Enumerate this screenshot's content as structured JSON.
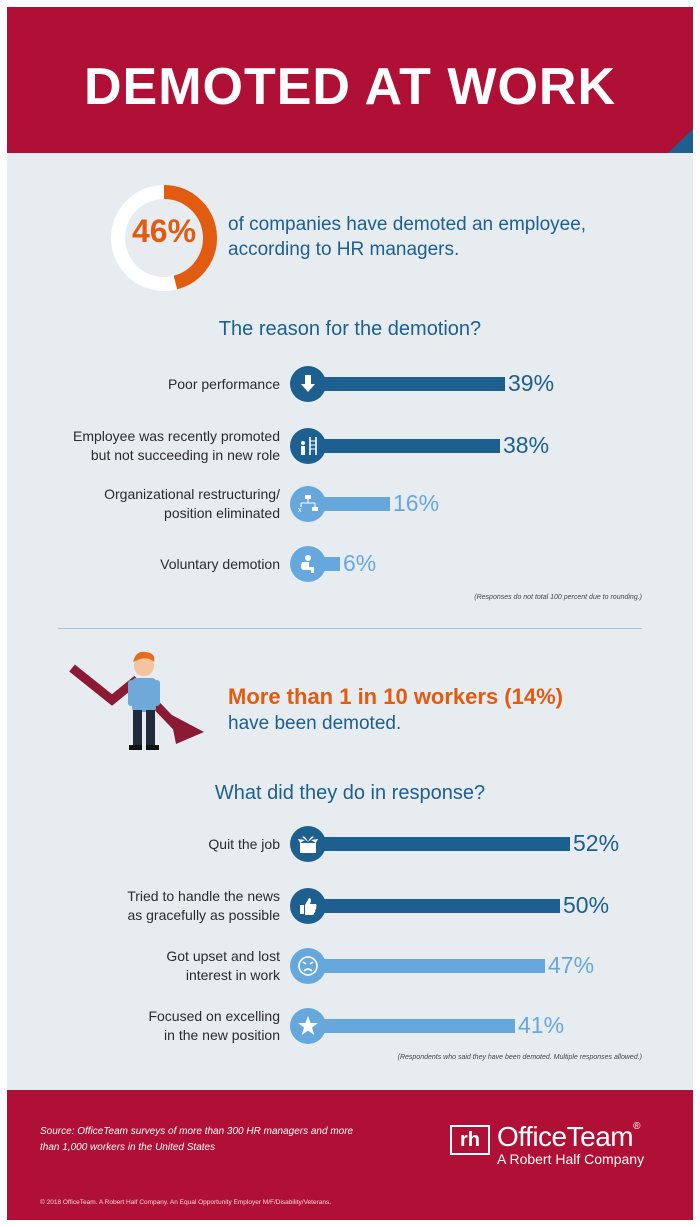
{
  "title": "DEMOTED AT WORK",
  "stat": {
    "percent_label": "46%",
    "value": 46,
    "text": "of companies have demoted an employee, according to HR managers."
  },
  "reasons": {
    "title": "The reason for the demotion?",
    "note": "(Responses do not total 100 percent due to rounding.)"
  },
  "workers": {
    "headline": "More than 1 in 10 workers (14%)",
    "subline": "have been demoted."
  },
  "responses": {
    "title": "What did they do in response?",
    "note": "(Respondents who said they have been demoted. Multiple responses allowed.)"
  },
  "footer": {
    "source": "Source: OfficeTeam surveys of more than 300 HR managers and more than 1,000 workers in the United States",
    "copyright": "© 2018 OfficeTeam. A Robert Half Company. An Equal Opportunity Employer M/F/Disability/Veterans.",
    "logo_mark": "rh",
    "logo_name": "OfficeTeam",
    "logo_reg": "®",
    "logo_sub": "A Robert Half Company"
  },
  "colors": {
    "header": "#b11036",
    "dark_blue": "#1d5f8e",
    "light_blue": "#67a8dc",
    "orange": "#e15b10",
    "background": "#e7ecf1"
  },
  "chart_data": [
    {
      "type": "bar",
      "title": "The reason for the demotion?",
      "categories": [
        "Poor performance",
        "Employee was recently promoted but not succeeding in new role",
        "Organizational restructuring/ position eliminated",
        "Voluntary demotion"
      ],
      "labels": [
        [
          "Poor performance"
        ],
        [
          "Employee was recently promoted",
          "but not succeeding in new role"
        ],
        [
          "Organizational restructuring/",
          "position eliminated"
        ],
        [
          "Voluntary demotion"
        ]
      ],
      "values": [
        39,
        38,
        16,
        6
      ],
      "value_labels": [
        "39%",
        "38%",
        "16%",
        "6%"
      ],
      "icons": [
        "down-arrow-icon",
        "ladder-person-icon",
        "org-chart-icon",
        "sitting-person-icon"
      ],
      "tones": [
        "dark",
        "dark",
        "light",
        "light"
      ]
    },
    {
      "type": "bar",
      "title": "What did they do in response?",
      "categories": [
        "Quit the job",
        "Tried to handle the news as gracefully as possible",
        "Got upset and lost interest in work",
        "Focused on excelling in the new position"
      ],
      "labels": [
        [
          "Quit the job"
        ],
        [
          "Tried to handle the news",
          "as gracefully as possible"
        ],
        [
          "Got upset and lost",
          "interest in work"
        ],
        [
          "Focused on excelling",
          "in the new position"
        ]
      ],
      "values": [
        52,
        50,
        47,
        41
      ],
      "value_labels": [
        "52%",
        "50%",
        "47%",
        "41%"
      ],
      "icons": [
        "box-with-plant-icon",
        "thumbs-up-icon",
        "angry-face-icon",
        "star-icon"
      ],
      "tones": [
        "dark",
        "dark",
        "light",
        "light"
      ]
    }
  ]
}
